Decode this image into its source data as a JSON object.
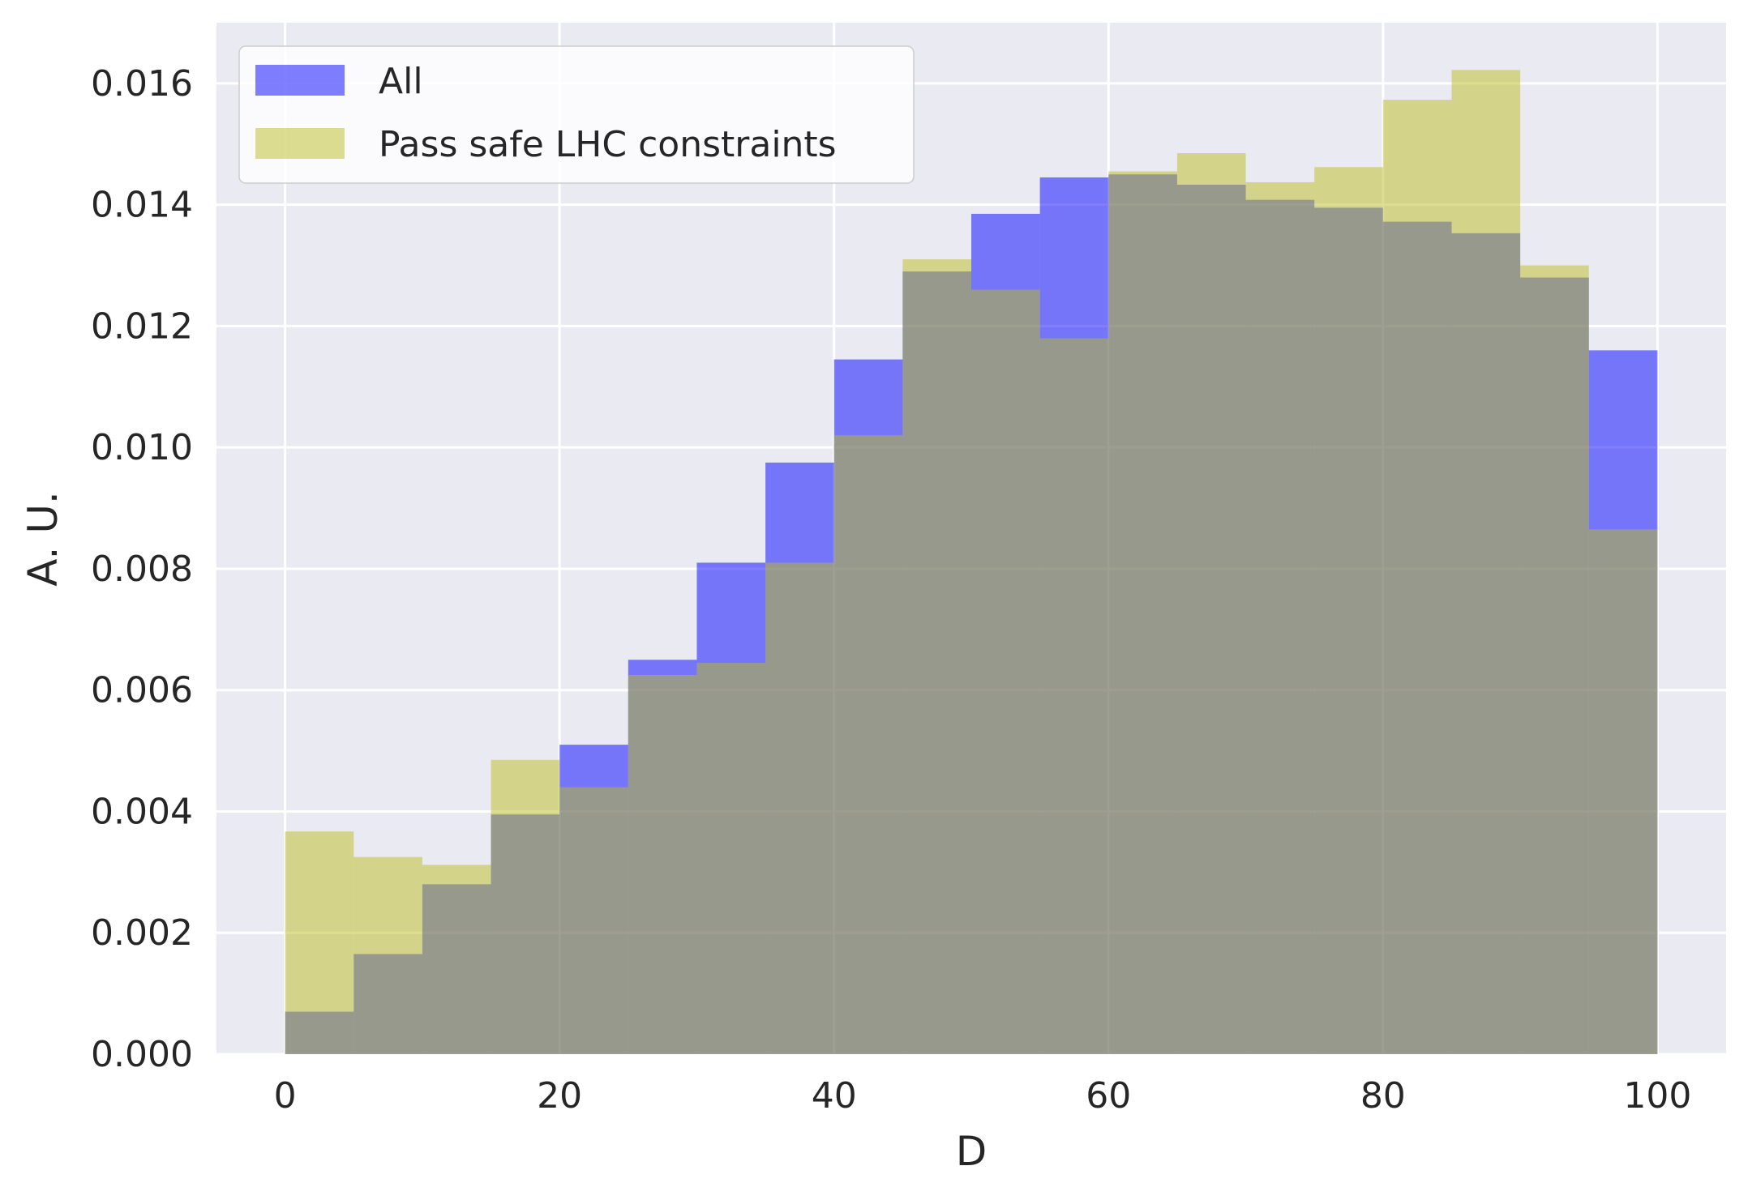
{
  "chart_data": {
    "type": "bar",
    "subtype": "histogram",
    "xlabel": "D",
    "ylabel": "A. U.",
    "xlim": [
      -5,
      105
    ],
    "ylim": [
      0,
      0.017
    ],
    "xticks": [
      0,
      20,
      40,
      60,
      80,
      100
    ],
    "xtick_labels": [
      "0",
      "20",
      "40",
      "60",
      "80",
      "100"
    ],
    "yticks": [
      0,
      0.002,
      0.004,
      0.006,
      0.008,
      0.01,
      0.012,
      0.014,
      0.016
    ],
    "ytick_labels": [
      "0.000",
      "0.002",
      "0.004",
      "0.006",
      "0.008",
      "0.010",
      "0.012",
      "0.014",
      "0.016"
    ],
    "grid": true,
    "legend_position": "top-left",
    "bin_edges": [
      0,
      5,
      10,
      15,
      20,
      25,
      30,
      35,
      40,
      45,
      50,
      55,
      60,
      65,
      70,
      75,
      80,
      85,
      90,
      95,
      100
    ],
    "series": [
      {
        "name": "All",
        "color": "#0000ff",
        "values": [
          0.0007,
          0.00165,
          0.0028,
          0.00395,
          0.0051,
          0.0065,
          0.0081,
          0.00975,
          0.01145,
          0.0129,
          0.01385,
          0.01445,
          0.0145,
          0.01433,
          0.01408,
          0.01395,
          0.01372,
          0.01353,
          0.0128,
          0.0116
        ]
      },
      {
        "name": "Pass safe LHC constraints",
        "color": "#bcbd22",
        "values": [
          0.00367,
          0.00325,
          0.00312,
          0.00485,
          0.0044,
          0.00625,
          0.00645,
          0.0081,
          0.0102,
          0.0131,
          0.0126,
          0.0118,
          0.01455,
          0.01485,
          0.01437,
          0.01462,
          0.01573,
          0.01622,
          0.013,
          0.00865
        ]
      }
    ]
  },
  "legend": {
    "items": [
      "All",
      "Pass safe LHC constraints"
    ]
  }
}
